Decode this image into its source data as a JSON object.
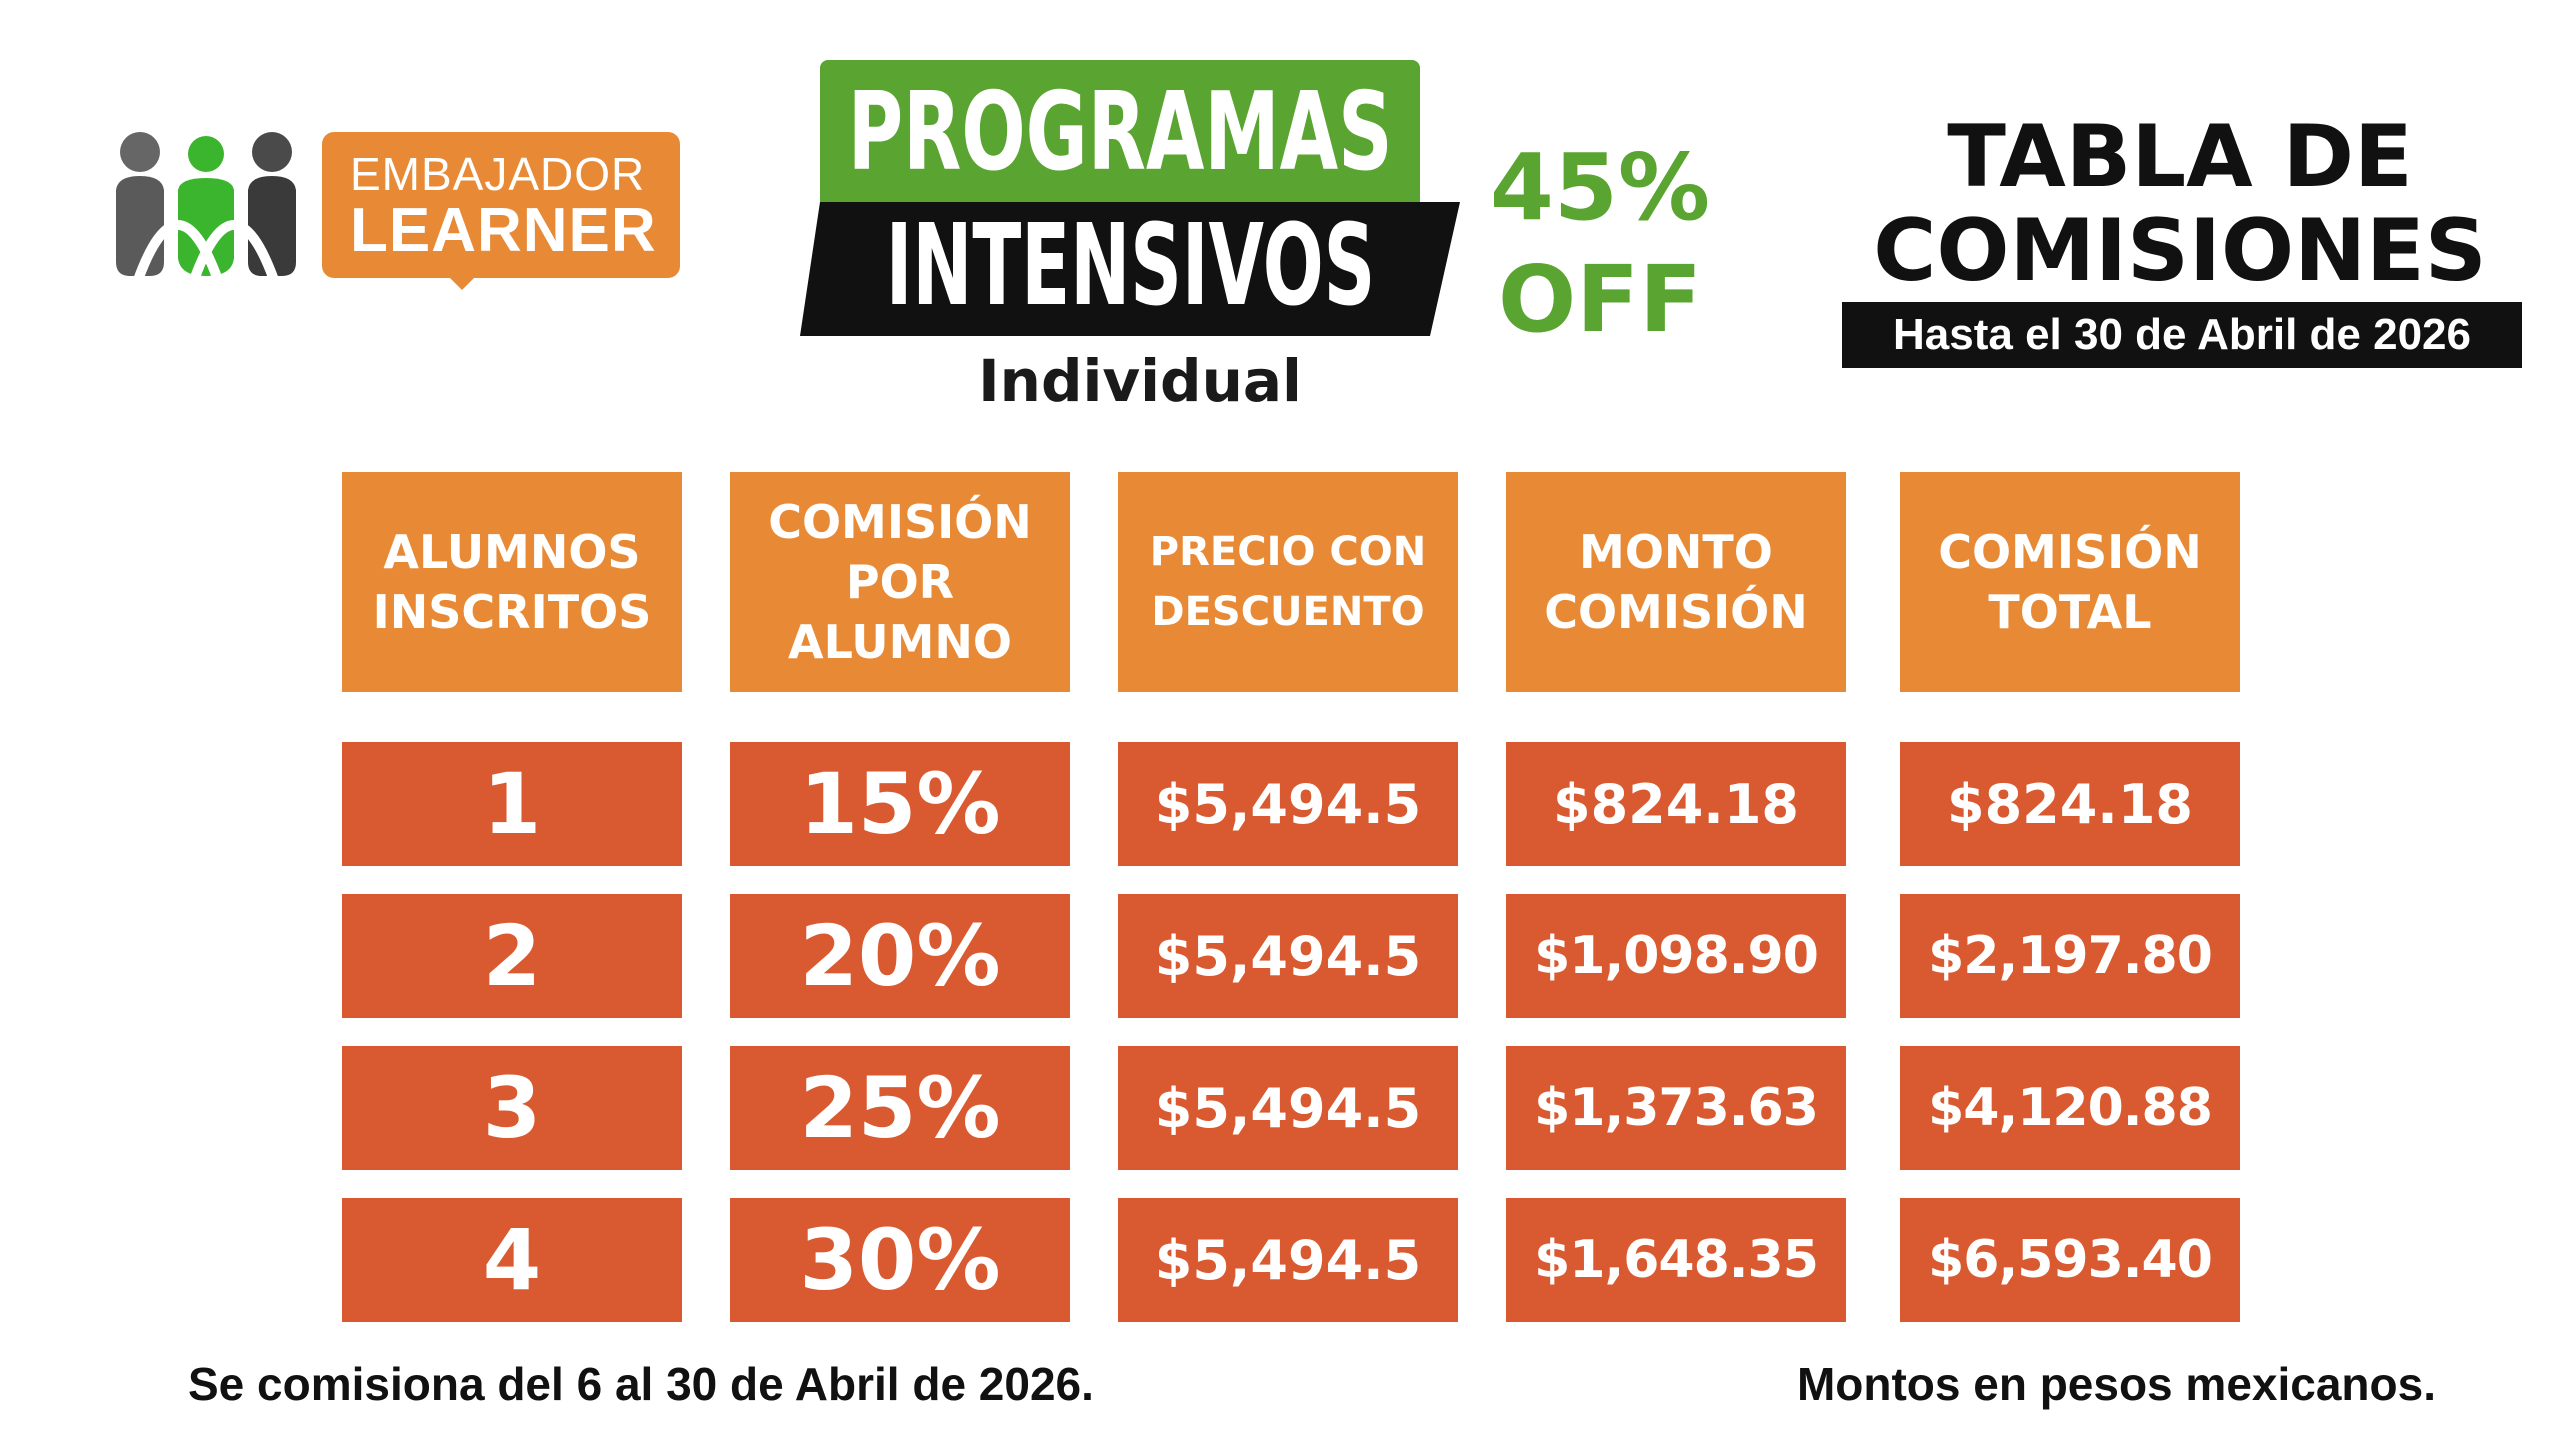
{
  "logo": {
    "line1": "EMBAJADOR",
    "line2": "LEARNER",
    "colors": {
      "orange": "#e88a35",
      "green": "#3cb52e",
      "gray": "#555555"
    }
  },
  "heading": {
    "line1": "PROGRAMAS",
    "line2": "INTENSIVOS",
    "subtitle": "Individual",
    "discount_line1": "45%",
    "discount_line2": "OFF"
  },
  "title": {
    "line1": "TABLA DE",
    "line2": "COMISIONES",
    "date_banner": "Hasta el 30 de Abril de 2026"
  },
  "table": {
    "headers": [
      [
        "ALUMNOS",
        "INSCRITOS"
      ],
      [
        "COMISIÓN",
        "POR",
        "ALUMNO"
      ],
      [
        "PRECIO CON",
        "DESCUENTO"
      ],
      [
        "MONTO",
        "COMISIÓN"
      ],
      [
        "COMISIÓN",
        "TOTAL"
      ]
    ],
    "rows": [
      [
        "1",
        "15%",
        "$5,494.5",
        "$824.18",
        "$824.18"
      ],
      [
        "2",
        "20%",
        "$5,494.5",
        "$1,098.90",
        "$2,197.80"
      ],
      [
        "3",
        "25%",
        "$5,494.5",
        "$1,373.63",
        "$4,120.88"
      ],
      [
        "4",
        "30%",
        "$5,494.5",
        "$1,648.35",
        "$6,593.40"
      ]
    ]
  },
  "footer": {
    "left": "Se comisiona del 6 al 30 de Abril de 2026.",
    "right": "Montos en pesos mexicanos."
  },
  "colors": {
    "header_cell": "#e88a35",
    "data_cell": "#d95a30",
    "green": "#5aa532",
    "black": "#111111"
  }
}
